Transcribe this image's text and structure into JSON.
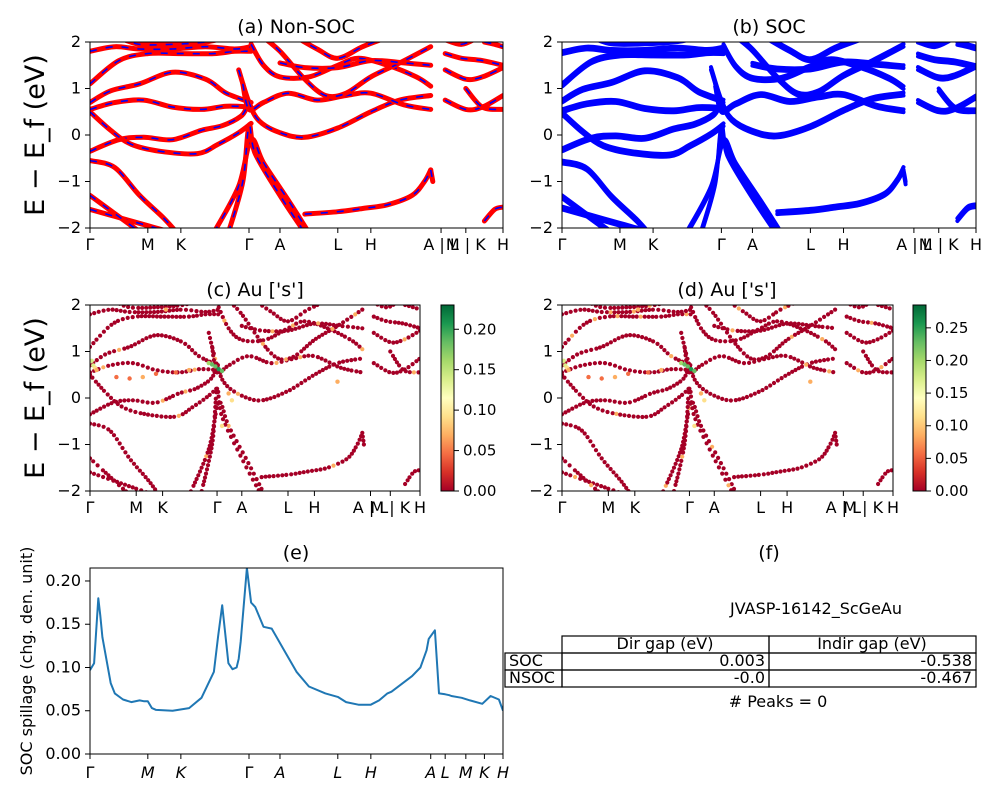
{
  "panels": {
    "a": {
      "title": "(a) Non-SOC"
    },
    "b": {
      "title": "(b) SOC"
    },
    "c": {
      "title": "(c)  Au ['s']"
    },
    "d": {
      "title": "(d) Au ['s']"
    },
    "e": {
      "title": "(e)"
    },
    "f": {
      "title": "(f)"
    }
  },
  "band_axis": {
    "ylabel": "E − E_f (eV)",
    "ylim": [
      -2,
      2
    ],
    "yticks": [
      "2",
      "1",
      "0",
      "−1",
      "−2"
    ],
    "kpath_labels": [
      "Γ",
      "M",
      "K",
      "Γ",
      "A",
      "L",
      "H",
      "A | L",
      "M | K",
      "H"
    ]
  },
  "colorbar_c": {
    "ticks": [
      "0.20",
      "0.15",
      "0.10",
      "0.05",
      "0.00"
    ],
    "max": 0.23
  },
  "colorbar_d": {
    "ticks": [
      "0.25",
      "0.20",
      "0.15",
      "0.10",
      "0.05",
      "0.00"
    ],
    "max": 0.285
  },
  "colors": {
    "nonsoc_line": "#ff0000",
    "nonsoc_dash": "#0000ff",
    "soc_line": "#0000ff",
    "spillage_line": "#1f77b4"
  },
  "table": {
    "material": "JVASP-16142_ScGeAu",
    "columns": [
      "Dir gap (eV)",
      "Indir gap (eV)"
    ],
    "rows": [
      {
        "label": "SOC",
        "dir": "0.003",
        "indir": "-0.538"
      },
      {
        "label": "NSOC",
        "dir": "-0.0",
        "indir": "-0.467"
      }
    ],
    "peaks": "# Peaks = 0"
  },
  "chart_data": [
    {
      "type": "line",
      "title": "(a) Non-SOC",
      "ylabel": "E − E_f (eV)",
      "ylim": [
        -2,
        2
      ],
      "x_ticks": [
        "Γ",
        "M",
        "K",
        "Γ",
        "A",
        "L",
        "H",
        "A | L",
        "M | K",
        "H"
      ]
    },
    {
      "type": "line",
      "title": "(b) SOC",
      "ylim": [
        -2,
        2
      ],
      "x_ticks": [
        "Γ",
        "M",
        "K",
        "Γ",
        "A",
        "L",
        "H",
        "A | L",
        "M | K",
        "H"
      ]
    },
    {
      "type": "scatter",
      "title": "(c)  Au ['s']",
      "ylabel": "E − E_f (eV)",
      "ylim": [
        -2,
        2
      ],
      "colorbar": [
        0,
        0.23
      ]
    },
    {
      "type": "scatter",
      "title": "(d) Au ['s']",
      "ylim": [
        -2,
        2
      ],
      "colorbar": [
        0,
        0.285
      ]
    },
    {
      "type": "line",
      "title": "(e)",
      "ylabel": "SOC spillage (chg. den. unit)",
      "ylim": [
        0,
        0.215
      ],
      "yticks": [
        "0.00",
        "0.05",
        "0.10",
        "0.15",
        "0.20"
      ],
      "x_ticks": [
        "Γ",
        "M",
        "K",
        "Γ",
        "A",
        "L",
        "H",
        "A",
        "L",
        "M",
        "K",
        "H"
      ],
      "x": [
        0,
        0.01,
        0.02,
        0.025,
        0.03,
        0.05,
        0.06,
        0.08,
        0.1,
        0.12,
        0.13,
        0.14,
        0.15,
        0.16,
        0.2,
        0.24,
        0.27,
        0.3,
        0.31,
        0.32,
        0.335,
        0.345,
        0.355,
        0.36,
        0.365,
        0.38,
        0.39,
        0.4,
        0.42,
        0.44,
        0.47,
        0.5,
        0.53,
        0.57,
        0.6,
        0.62,
        0.65,
        0.68,
        0.7,
        0.72,
        0.73,
        0.78,
        0.8,
        0.815,
        0.82,
        0.835,
        0.845,
        0.86,
        0.87,
        0.875,
        0.9,
        0.92,
        0.95,
        0.97,
        0.99,
        1.0
      ],
      "y": [
        0.097,
        0.105,
        0.18,
        0.16,
        0.135,
        0.082,
        0.07,
        0.063,
        0.06,
        0.062,
        0.061,
        0.061,
        0.053,
        0.051,
        0.05,
        0.053,
        0.065,
        0.095,
        0.135,
        0.172,
        0.105,
        0.098,
        0.1,
        0.11,
        0.13,
        0.215,
        0.175,
        0.17,
        0.147,
        0.145,
        0.12,
        0.095,
        0.078,
        0.07,
        0.066,
        0.06,
        0.057,
        0.057,
        0.062,
        0.07,
        0.072,
        0.09,
        0.1,
        0.12,
        0.133,
        0.143,
        0.07,
        0.069,
        0.068,
        0.067,
        0.065,
        0.062,
        0.058,
        0.067,
        0.063,
        0.05
      ]
    },
    {
      "type": "table",
      "title": "(f)",
      "columns": [
        "Dir gap (eV)",
        "Indir gap (eV)"
      ],
      "rows": [
        [
          "SOC",
          "0.003",
          "-0.538"
        ],
        [
          "NSOC",
          "-0.0",
          "-0.467"
        ]
      ]
    }
  ]
}
